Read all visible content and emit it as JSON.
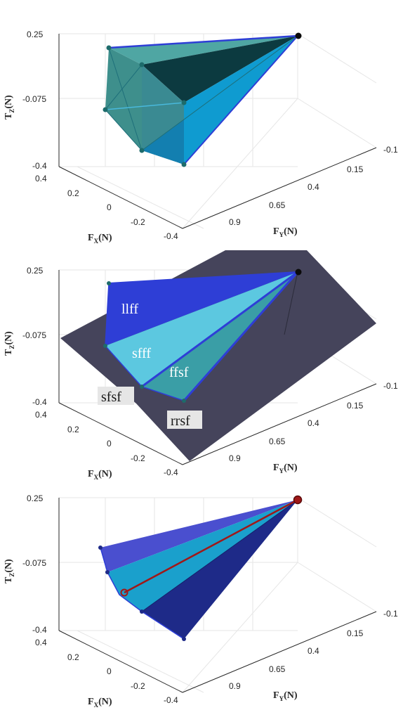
{
  "axes": {
    "z_label": "T",
    "z_sub": "Z",
    "x_label": "F",
    "x_sub": "X",
    "y_label": "F",
    "y_sub": "Y",
    "unit": "(N)",
    "z_ticks": [
      "0.25",
      "-0.075",
      "-0.4"
    ],
    "x_ticks": [
      "0.4",
      "0.2",
      "0",
      "-0.2",
      "-0.4"
    ],
    "y_ticks": [
      "-0.1",
      "0.15",
      "0.4",
      "0.65",
      "0.9"
    ]
  },
  "panel2_labels": {
    "llff": "llff",
    "sfff": "sfff",
    "ffsf": "ffsf",
    "sfsf": "sfsf",
    "rrsf": "rrsf"
  },
  "chart_data": [
    {
      "type": "surface3d",
      "panel": "top",
      "zlim": [
        -0.4,
        0.25
      ],
      "xlim": [
        -0.4,
        0.4
      ],
      "ylim": [
        -0.1,
        0.9
      ],
      "grid": true,
      "description_series": [
        {
          "kind": "apex",
          "value": [
            0.0,
            -0.1,
            0.25
          ]
        },
        {
          "kind": "vertices",
          "count": 7
        }
      ]
    },
    {
      "type": "surface3d",
      "panel": "middle",
      "zlim": [
        -0.4,
        0.25
      ],
      "xlim": [
        -0.4,
        0.4
      ],
      "ylim": [
        -0.1,
        0.9
      ],
      "grid": true,
      "face_labels": [
        "llff",
        "sfff",
        "ffsf",
        "sfsf",
        "rrsf"
      ]
    },
    {
      "type": "surface3d",
      "panel": "bottom",
      "zlim": [
        -0.4,
        0.25
      ],
      "xlim": [
        -0.4,
        0.4
      ],
      "ylim": [
        -0.1,
        0.9
      ],
      "grid": true
    }
  ],
  "colors": {
    "teal": "#3e8f8c",
    "teal_light": "#4fa6a3",
    "dark_teal": "#0c3a40",
    "cyan": "#0f9bd0",
    "cyan_light": "#49b9dc",
    "blue": "#2e3ed6",
    "light_blue": "#5cc8e0",
    "plane": "#45445b",
    "navy": "#1e2a88",
    "mid_blue": "#4a4fcf",
    "steel": "#1aa0cc",
    "red": "#a01818"
  }
}
